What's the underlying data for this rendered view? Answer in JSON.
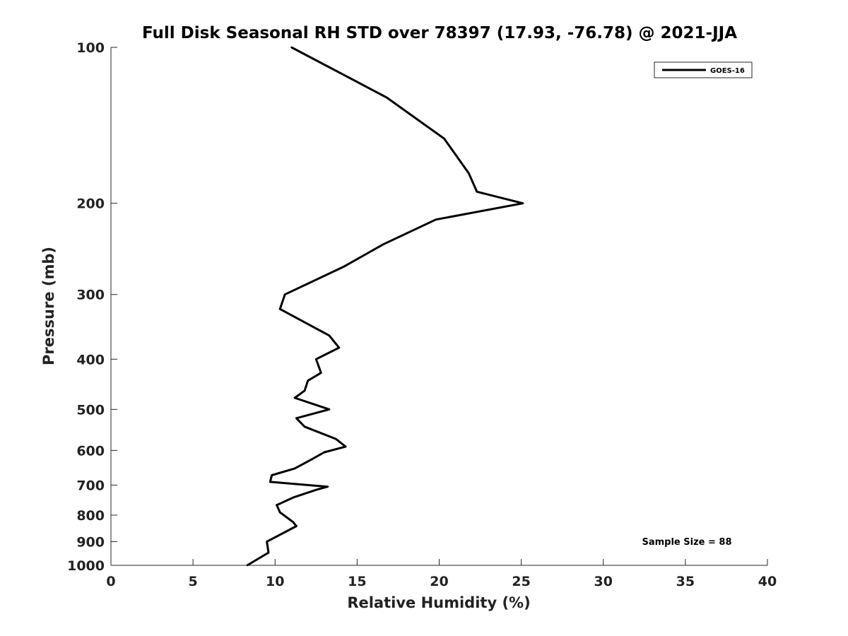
{
  "chart_data": {
    "type": "line",
    "title": "Full Disk Seasonal RH STD over 78397 (17.93, -76.78) @ 2021-JJA",
    "xlabel": "Relative Humidity (%)",
    "ylabel": "Pressure (mb)",
    "xlim": [
      0,
      40
    ],
    "ylim": [
      1000,
      100
    ],
    "y_scale": "log",
    "y_reversed": true,
    "grid": false,
    "legend_position": "top-right",
    "x_ticks": [
      "0",
      "5",
      "10",
      "15",
      "20",
      "25",
      "30",
      "35",
      "40"
    ],
    "y_ticks": [
      "100",
      "200",
      "300",
      "400",
      "500",
      "600",
      "700",
      "800",
      "900",
      "1000"
    ],
    "annotation": "Sample Size = 88",
    "series": [
      {
        "name": "GOES-16",
        "color": "#000000",
        "points": [
          {
            "rh": 11.0,
            "p": 100
          },
          {
            "rh": 16.8,
            "p": 125
          },
          {
            "rh": 20.3,
            "p": 150
          },
          {
            "rh": 21.8,
            "p": 175
          },
          {
            "rh": 22.3,
            "p": 190
          },
          {
            "rh": 25.1,
            "p": 200
          },
          {
            "rh": 19.8,
            "p": 215
          },
          {
            "rh": 16.6,
            "p": 240
          },
          {
            "rh": 14.2,
            "p": 265
          },
          {
            "rh": 10.6,
            "p": 300
          },
          {
            "rh": 10.3,
            "p": 320
          },
          {
            "rh": 13.3,
            "p": 360
          },
          {
            "rh": 13.9,
            "p": 380
          },
          {
            "rh": 12.5,
            "p": 400
          },
          {
            "rh": 12.8,
            "p": 425
          },
          {
            "rh": 12.0,
            "p": 440
          },
          {
            "rh": 11.8,
            "p": 460
          },
          {
            "rh": 11.2,
            "p": 475
          },
          {
            "rh": 13.3,
            "p": 500
          },
          {
            "rh": 11.3,
            "p": 520
          },
          {
            "rh": 11.8,
            "p": 540
          },
          {
            "rh": 13.7,
            "p": 570
          },
          {
            "rh": 14.3,
            "p": 590
          },
          {
            "rh": 13.0,
            "p": 605
          },
          {
            "rh": 12.2,
            "p": 625
          },
          {
            "rh": 11.2,
            "p": 650
          },
          {
            "rh": 9.8,
            "p": 670
          },
          {
            "rh": 9.7,
            "p": 690
          },
          {
            "rh": 13.2,
            "p": 705
          },
          {
            "rh": 12.5,
            "p": 715
          },
          {
            "rh": 11.1,
            "p": 740
          },
          {
            "rh": 10.1,
            "p": 765
          },
          {
            "rh": 10.3,
            "p": 790
          },
          {
            "rh": 11.1,
            "p": 825
          },
          {
            "rh": 11.3,
            "p": 840
          },
          {
            "rh": 9.5,
            "p": 900
          },
          {
            "rh": 9.6,
            "p": 945
          },
          {
            "rh": 8.3,
            "p": 1000
          }
        ]
      }
    ]
  }
}
